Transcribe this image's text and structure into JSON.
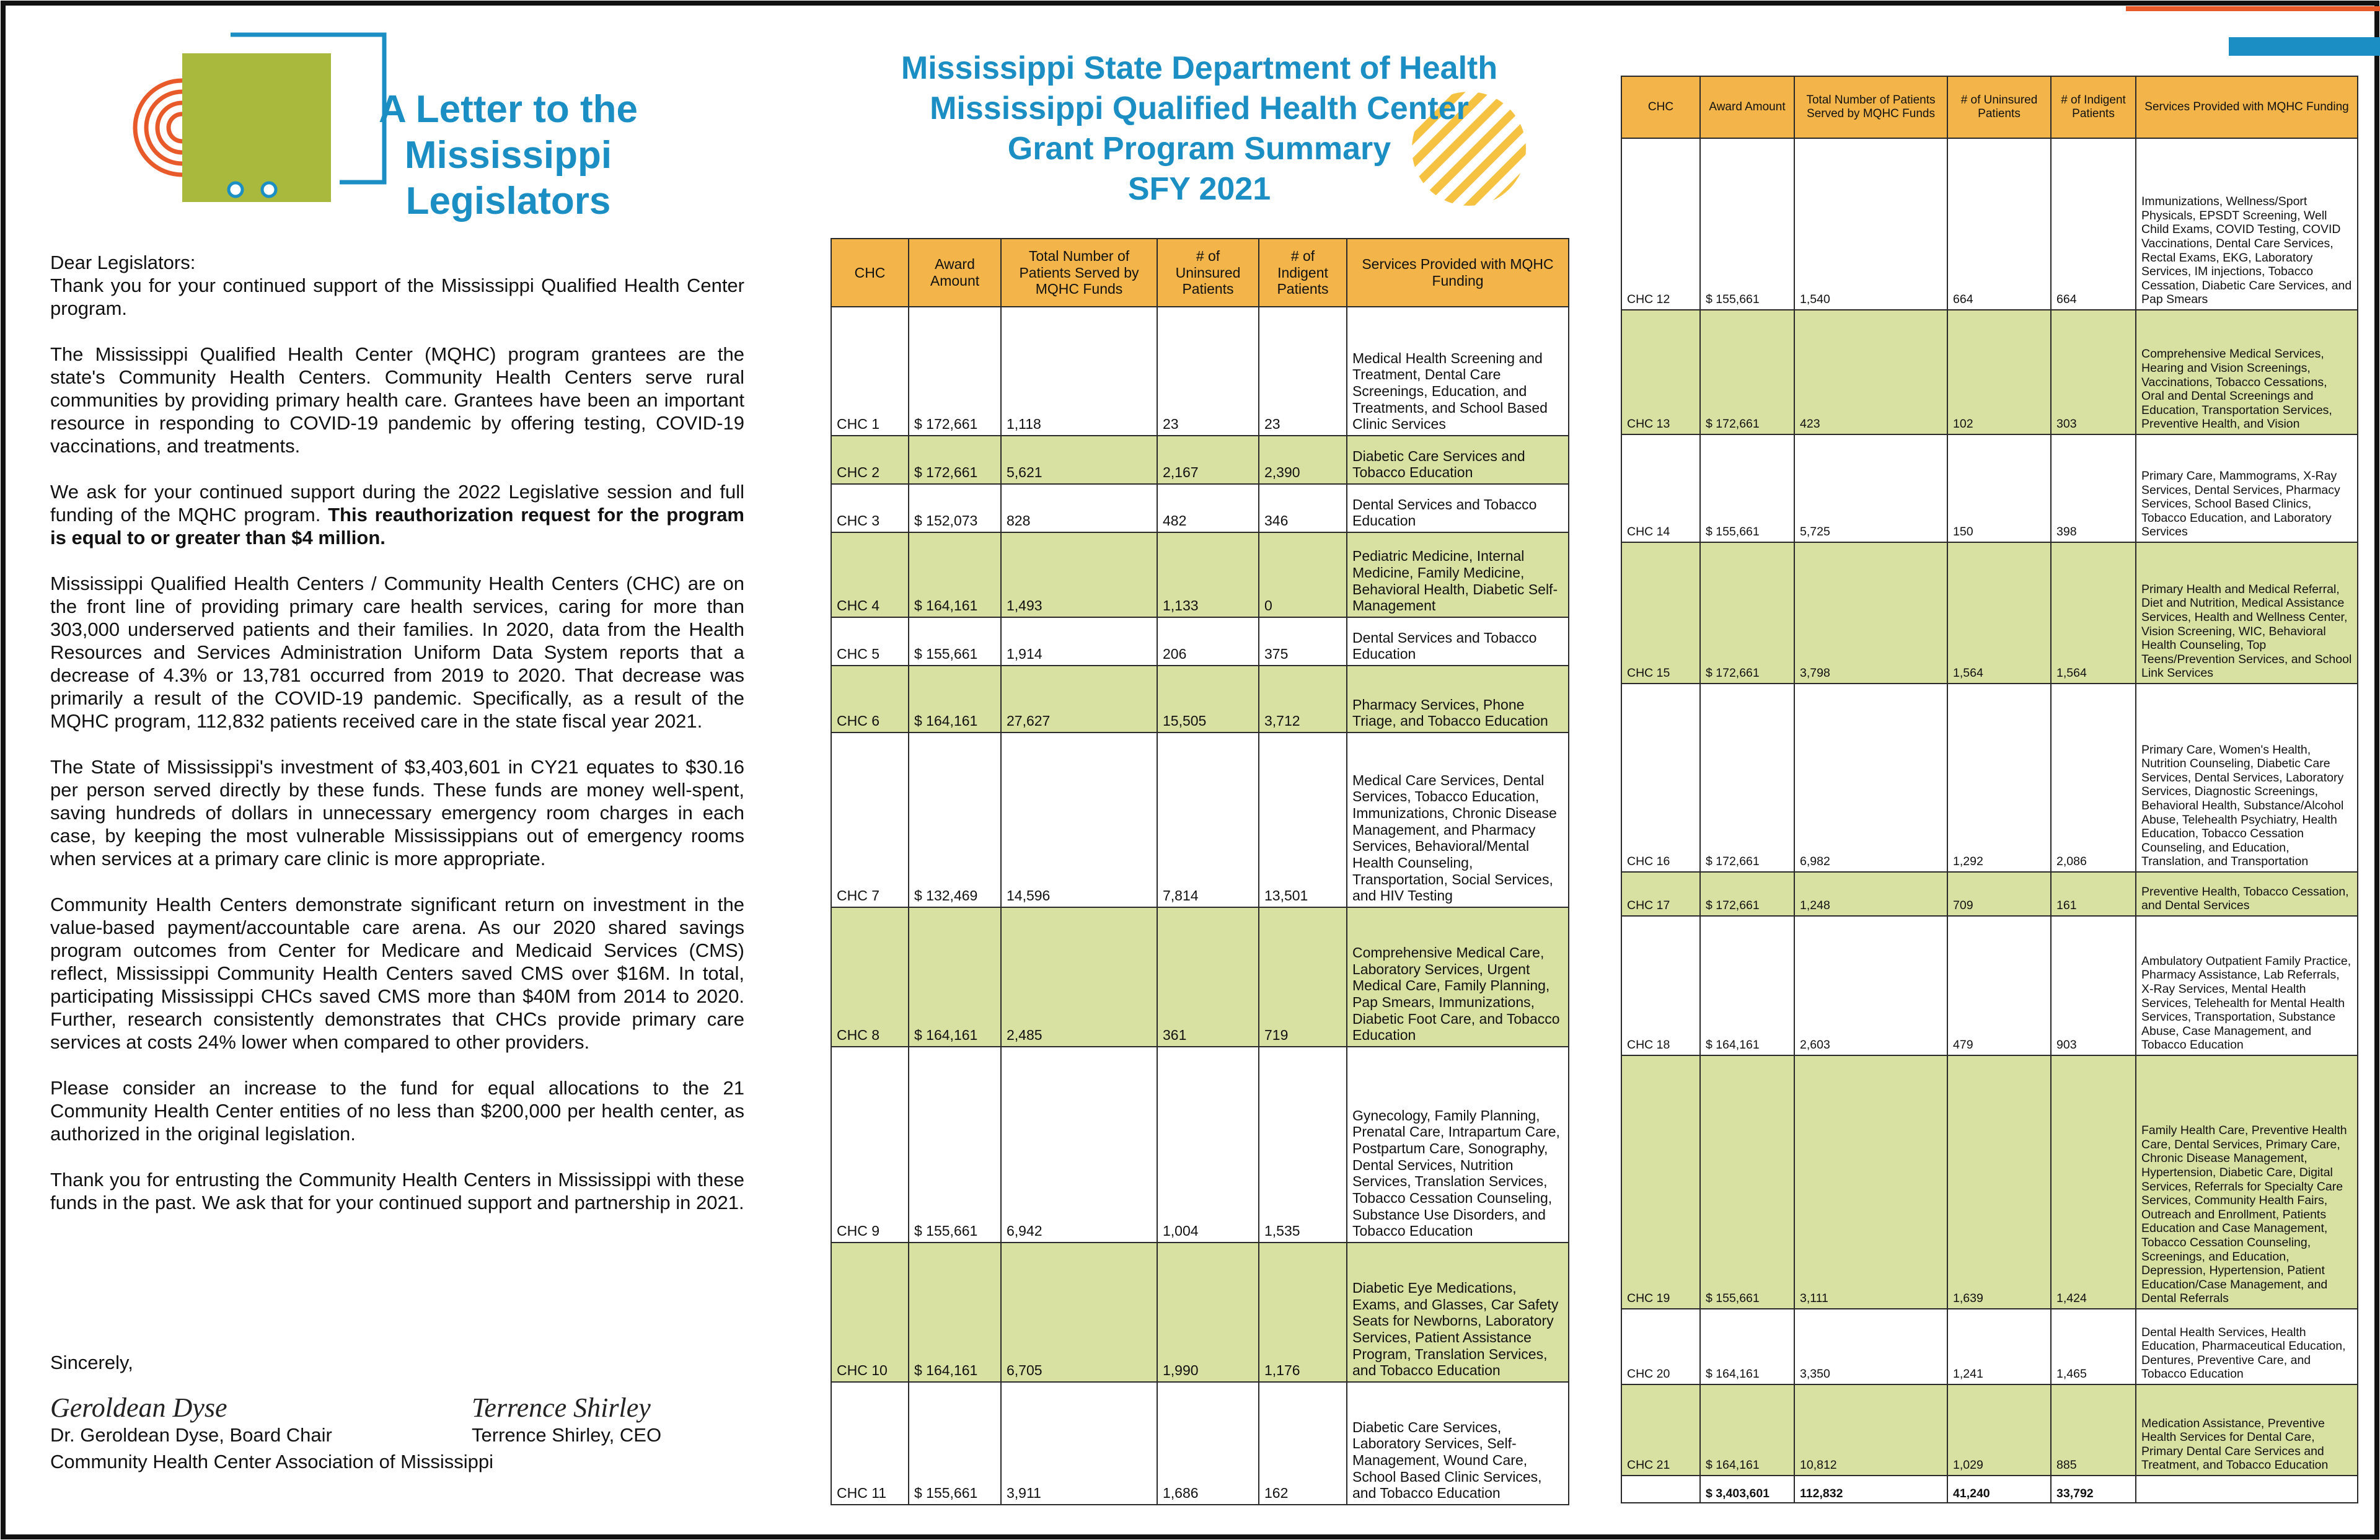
{
  "letter": {
    "title": [
      "A Letter to the",
      "Mississippi",
      "Legislators"
    ],
    "salutation": "Dear Legislators:",
    "paragraphs": [
      {
        "text": "Thank you for your continued support of the Mississippi Qualified Health Center program."
      },
      {
        "text": "The Mississippi Qualified Health Center (MQHC) program grantees are the state's Community Health Centers. Community Health Centers serve rural communities by providing primary health care. Grantees have been an important resource in responding to COVID-19 pandemic by offering testing, COVID-19 vaccinations, and treatments."
      },
      {
        "text": "We ask for your continued support during the 2022 Legislative session and full funding of the MQHC program.",
        "bold": "This reauthorization request for the program is equal to or greater than $4 million."
      },
      {
        "text": "Mississippi Qualified Health Centers / Community Health Centers (CHC) are on the front line of providing primary care health services, caring for more than 303,000 underserved patients and their families. In 2020, data from the Health Resources and Services Administration Uniform Data System reports that a decrease of 4.3% or 13,781 occurred from 2019 to 2020. That decrease was primarily a result of the COVID-19 pandemic. Specifically, as a result of the MQHC program, 112,832 patients received care in the state fiscal year 2021."
      },
      {
        "text": "The State of Mississippi's investment of $3,403,601 in CY21 equates to $30.16 per person served directly by these funds. These funds are money well-spent, saving hundreds of dollars in unnecessary emergency room charges in each case, by keeping the most vulnerable Mississippians out of emergency rooms when services at a primary care clinic is more appropriate."
      },
      {
        "text": "Community Health Centers demonstrate significant return on investment in the value-based payment/accountable care arena. As our 2020 shared savings program outcomes from Center for Medicare and Medicaid Services (CMS) reflect, Mississippi Community Health Centers saved CMS over $16M. In total, participating Mississippi CHCs saved CMS more than $40M from 2014 to 2020. Further, research consistently demonstrates that CHCs provide primary care services at costs 24% lower when compared to other providers."
      },
      {
        "text": "Please consider an increase to the fund for equal allocations to the 21 Community Health Center entities of no less than $200,000 per health center, as authorized in the original legislation."
      },
      {
        "text": "Thank you for entrusting the Community Health Centers in Mississippi with these funds in the past. We ask that for your continued support and partnership in 2021."
      }
    ],
    "closing": "Sincerely,",
    "signatures": [
      {
        "signature": "Geroldean Dyse",
        "name": "Dr. Geroldean Dyse, Board Chair"
      },
      {
        "signature": "Terrence Shirley",
        "name": "Terrence Shirley, CEO"
      }
    ],
    "organization": "Community Health Center Association of Mississippi"
  },
  "summary": {
    "title": [
      "Mississippi State Department of Health",
      "Mississippi Qualified Health Center",
      "Grant Program Summary",
      "SFY 2021"
    ],
    "tables": [
      {
        "headers": [
          "CHC",
          "Award Amount",
          "Total Number of Patients Served by MQHC Funds",
          "# of Uninsured Patients",
          "# of Indigent Patients",
          "Services Provided with MQHC Funding"
        ],
        "rows": [
          [
            "CHC 1",
            "$ 172,661",
            "1,118",
            "23",
            "23",
            "Medical Health Screening and Treatment, Dental Care Screenings, Education, and Treatments, and School Based Clinic Services"
          ],
          [
            "CHC 2",
            "$ 172,661",
            "5,621",
            "2,167",
            "2,390",
            "Diabetic Care Services and Tobacco Education"
          ],
          [
            "CHC 3",
            "$ 152,073",
            "828",
            "482",
            "346",
            "Dental Services and Tobacco Education"
          ],
          [
            "CHC 4",
            "$ 164,161",
            "1,493",
            "1,133",
            "0",
            "Pediatric Medicine, Internal Medicine, Family Medicine, Behavioral Health, Diabetic Self-Management"
          ],
          [
            "CHC 5",
            "$ 155,661",
            "1,914",
            "206",
            "375",
            "Dental Services and Tobacco Education"
          ],
          [
            "CHC 6",
            "$ 164,161",
            "27,627",
            "15,505",
            "3,712",
            "Pharmacy Services, Phone Triage, and Tobacco Education"
          ],
          [
            "CHC 7",
            "$ 132,469",
            "14,596",
            "7,814",
            "13,501",
            "Medical Care Services, Dental Services, Tobacco Education, Immunizations, Chronic Disease Management, and Pharmacy Services, Behavioral/Mental Health Counseling, Transportation, Social Services, and HIV Testing"
          ],
          [
            "CHC 8",
            "$ 164,161",
            "2,485",
            "361",
            "719",
            "Comprehensive Medical Care, Laboratory Services, Urgent Medical Care, Family Planning, Pap Smears, Immunizations, Diabetic Foot Care, and Tobacco Education"
          ],
          [
            "CHC 9",
            "$ 155,661",
            "6,942",
            "1,004",
            "1,535",
            "Gynecology, Family Planning, Prenatal Care, Intrapartum Care, Postpartum Care, Sonography, Dental Services, Nutrition Services, Translation Services, Tobacco Cessation Counseling, Substance Use Disorders, and Tobacco Education"
          ],
          [
            "CHC 10",
            "$ 164,161",
            "6,705",
            "1,990",
            "1,176",
            "Diabetic Eye Medications, Exams, and Glasses, Car Safety Seats for Newborns, Laboratory Services, Patient Assistance Program, Translation Services, and Tobacco Education"
          ],
          [
            "CHC 11",
            "$ 155,661",
            "3,911",
            "1,686",
            "162",
            "Diabetic Care Services, Laboratory Services, Self-Management, Wound Care, School Based Clinic Services, and Tobacco Education"
          ]
        ]
      },
      {
        "headers": [
          "CHC",
          "Award Amount",
          "Total Number of Patients Served by MQHC Funds",
          "# of Uninsured Patients",
          "# of Indigent Patients",
          "Services Provided with MQHC Funding"
        ],
        "rows": [
          [
            "CHC 12",
            "$ 155,661",
            "1,540",
            "664",
            "664",
            "Immunizations, Wellness/Sport Physicals, EPSDT Screening, Well Child Exams, COVID Testing, COVID Vaccinations, Dental Care Services, Rectal Exams, EKG, Laboratory Services, IM injections, Tobacco Cessation, Diabetic Care Services, and Pap Smears"
          ],
          [
            "CHC 13",
            "$ 172,661",
            "423",
            "102",
            "303",
            "Comprehensive Medical Services, Hearing and Vision Screenings, Vaccinations, Tobacco Cessations, Oral and Dental Screenings and Education, Transportation Services, Preventive Health, and Vision"
          ],
          [
            "CHC 14",
            "$ 155,661",
            "5,725",
            "150",
            "398",
            "Primary Care, Mammograms, X-Ray Services, Dental Services, Pharmacy Services, School Based Clinics, Tobacco Education, and Laboratory Services"
          ],
          [
            "CHC 15",
            "$ 172,661",
            "3,798",
            "1,564",
            "1,564",
            "Primary Health and Medical Referral, Diet and Nutrition, Medical Assistance Services, Health and Wellness Center, Vision Screening, WIC, Behavioral Health Counseling, Top Teens/Prevention Services, and School Link Services"
          ],
          [
            "CHC 16",
            "$ 172,661",
            "6,982",
            "1,292",
            "2,086",
            "Primary Care, Women's Health, Nutrition Counseling, Diabetic Care Services, Dental Services, Laboratory Services, Diagnostic Screenings, Behavioral Health, Substance/Alcohol Abuse, Telehealth Psychiatry, Health Education, Tobacco Cessation Counseling, and Education, Translation, and Transportation"
          ],
          [
            "CHC 17",
            "$ 172,661",
            "1,248",
            "709",
            "161",
            "Preventive Health, Tobacco Cessation, and Dental Services"
          ],
          [
            "CHC 18",
            "$ 164,161",
            "2,603",
            "479",
            "903",
            "Ambulatory Outpatient Family Practice, Pharmacy Assistance, Lab Referrals, X-Ray Services, Mental Health Services, Telehealth for Mental Health Services, Transportation, Substance Abuse, Case Management, and Tobacco Education"
          ],
          [
            "CHC 19",
            "$ 155,661",
            "3,111",
            "1,639",
            "1,424",
            "Family Health Care, Preventive Health Care, Dental Services, Primary Care, Chronic Disease Management, Hypertension, Diabetic Care, Digital Services, Referrals for Specialty Care Services, Community Health Fairs, Outreach and Enrollment, Patients Education and Case Management, Tobacco Cessation Counseling, Screenings, and Education, Depression, Hypertension, Patient Education/Case Management, and Dental Referrals"
          ],
          [
            "CHC 20",
            "$ 164,161",
            "3,350",
            "1,241",
            "1,465",
            "Dental Health Services, Health Education, Pharmaceutical Education, Dentures, Preventive Care, and Tobacco Education"
          ],
          [
            "CHC 21",
            "$ 164,161",
            "10,812",
            "1,029",
            "885",
            "Medication Assistance, Preventive Health Services for Dental Care, Primary Dental Care Services and Treatment, and Tobacco Education"
          ]
        ],
        "total": [
          "$ 3,403,601",
          "112,832",
          "41,240",
          "33,792"
        ]
      }
    ]
  }
}
